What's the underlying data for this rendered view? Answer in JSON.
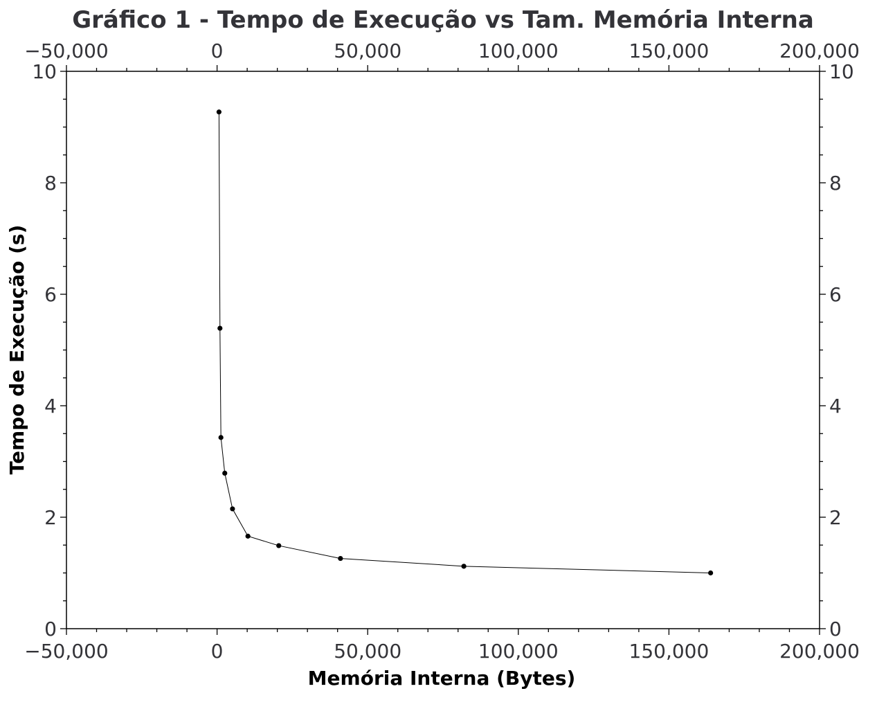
{
  "colors": {
    "series": "#000000",
    "text": "#333338",
    "background": "#ffffff"
  },
  "chart_data": {
    "type": "line",
    "title": "Gráfico 1 - Tempo de Execução vs Tam. Memória Interna",
    "xlabel": "Memória Interna (Bytes)",
    "ylabel": "Tempo de Execução (s)",
    "xlim": [
      -50000,
      200000
    ],
    "ylim": [
      0,
      10
    ],
    "x_ticks": [
      -50000,
      0,
      50000,
      100000,
      150000,
      200000
    ],
    "x_tick_labels": [
      "−50,000",
      "0",
      "50,000",
      "100,000",
      "150,000",
      "200,000"
    ],
    "x_minor_step": 10000,
    "y_ticks": [
      0,
      2,
      4,
      6,
      8,
      10
    ],
    "y_tick_labels": [
      "0",
      "2",
      "4",
      "6",
      "8",
      "10"
    ],
    "y_minor_step": 0.5,
    "mirror_axes": true,
    "grid": false,
    "markers": true,
    "series": [
      {
        "x": [
          640,
          960,
          1280,
          2560,
          5120,
          10240,
          20480,
          40960,
          81920,
          163840
        ],
        "y": [
          9.27,
          5.39,
          3.43,
          2.79,
          2.15,
          1.66,
          1.49,
          1.26,
          1.12,
          1.0
        ]
      }
    ]
  }
}
